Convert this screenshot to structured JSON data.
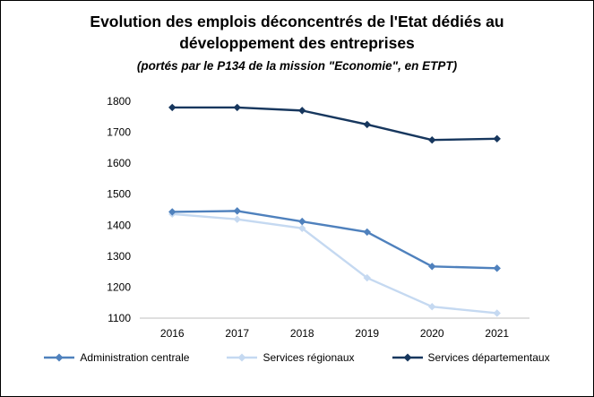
{
  "title": "Evolution des emplois déconcentrés de l'Etat dédiés au développement des entreprises",
  "subtitle": "(portés par le P134 de la mission \"Economie\", en ETPT)",
  "chart_data": {
    "type": "line",
    "x": [
      "2016",
      "2017",
      "2018",
      "2019",
      "2020",
      "2021"
    ],
    "series": [
      {
        "name": "Administration centrale",
        "color": "#4F81BD",
        "values": [
          1443,
          1446,
          1412,
          1378,
          1267,
          1261
        ]
      },
      {
        "name": "Services régionaux",
        "color": "#C5D9F1",
        "values": [
          1436,
          1419,
          1390,
          1230,
          1137,
          1116
        ]
      },
      {
        "name": "Services départementaux",
        "color": "#17375E",
        "values": [
          1780,
          1780,
          1770,
          1725,
          1675,
          1679
        ]
      }
    ],
    "ylim": [
      1100,
      1800
    ],
    "yticks": [
      1100,
      1200,
      1300,
      1400,
      1500,
      1600,
      1700,
      1800
    ],
    "grid": false,
    "legend_position": "bottom",
    "axis_line_color": "#BFBFBF"
  }
}
